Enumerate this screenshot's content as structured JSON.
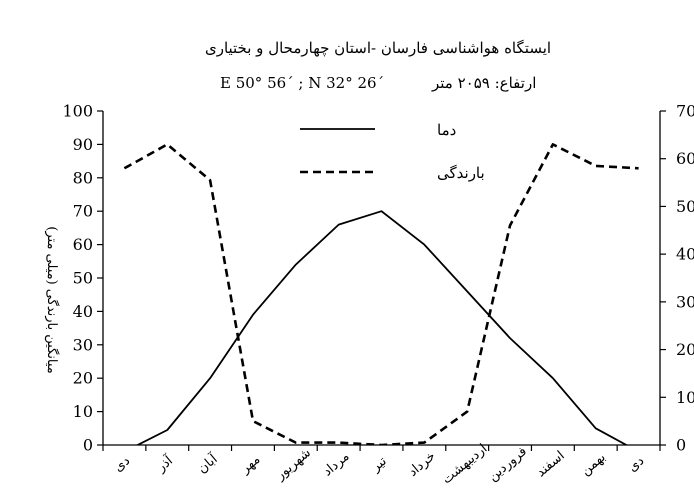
{
  "chart_data": {
    "type": "line",
    "title_line1": "ایستگاه هواشناسی فارسان -استان چهارمحال و بختیاری",
    "title_line2_elevation": "ارتفاع: ۲۰۵۹ متر",
    "title_line2_coords": "E 50° 56΄ ; N 32° 26΄",
    "ylabel": "میانگین بارندگی (میلی متر)",
    "categories": [
      "دی",
      "آذر",
      "آبان",
      "مهر",
      "شهریور",
      "مرداد",
      "تیر",
      "خرداد",
      "اردیبهشت",
      "فروردین",
      "اسفند",
      "بهمن",
      "دی"
    ],
    "y_left": {
      "min": 0,
      "max": 100,
      "ticks": [
        "0",
        "10",
        "20",
        "30",
        "40",
        "50",
        "60",
        "70",
        "80",
        "90",
        "100"
      ]
    },
    "y_right": {
      "min": 0,
      "max": 70,
      "ticks": [
        "0",
        "10",
        "20",
        "30",
        "40",
        "50",
        "60",
        "70"
      ]
    },
    "legend_position": "top-center",
    "series": [
      {
        "name": "دما",
        "style": "solid",
        "axis": "left",
        "values": [
          -2,
          4.5,
          20,
          39,
          54,
          66,
          70,
          60,
          46,
          32,
          20,
          5,
          -2
        ]
      },
      {
        "name": "بارندگی",
        "style": "dashed",
        "axis": "right",
        "values": [
          58,
          63,
          55.5,
          5,
          0.5,
          0.5,
          0,
          0.5,
          7,
          46,
          63,
          58.5,
          58
        ]
      }
    ]
  }
}
